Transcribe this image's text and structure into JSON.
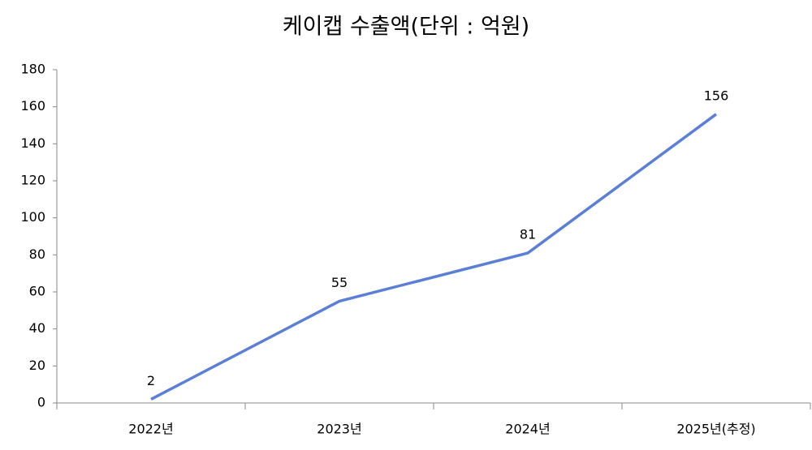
{
  "chart_data": {
    "type": "line",
    "title": "케이캡 수출액(단위 : 억원)",
    "categories": [
      "2022년",
      "2023년",
      "2024년",
      "2025년(추정)"
    ],
    "values": [
      2,
      55,
      81,
      156
    ],
    "color": "#5b7fd6",
    "ylim": [
      0,
      180
    ],
    "yticks": [
      0,
      20,
      40,
      60,
      80,
      100,
      120,
      140,
      160,
      180
    ],
    "grid": false
  }
}
